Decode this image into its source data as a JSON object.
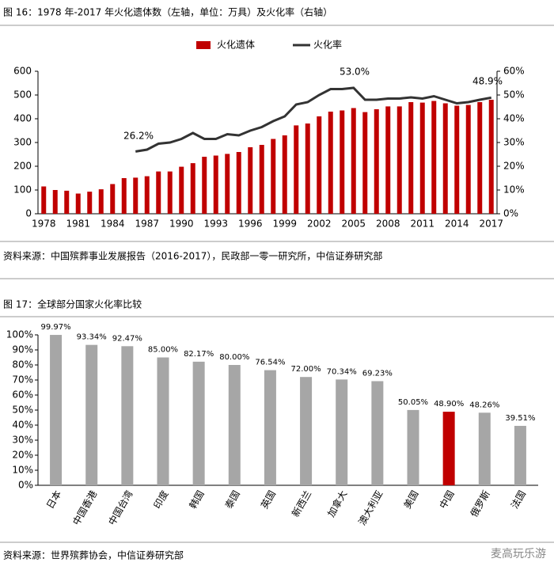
{
  "watermark": "麦高玩乐游",
  "chart_data": [
    {
      "type": "bar_line",
      "title": "图 16：1978 年-2017 年火化遗体数（左轴，单位：万具）及火化率（右轴）",
      "source": "资料来源：中国殡葬事业发展报告（2016-2017），民政部一零一研究所，中信证券研究部",
      "categories": [
        "1978",
        null,
        null,
        "1981",
        null,
        null,
        "1984",
        null,
        null,
        "1987",
        null,
        null,
        "1990",
        null,
        null,
        "1993",
        null,
        null,
        "1996",
        null,
        null,
        "1999",
        null,
        null,
        "2002",
        null,
        null,
        "2005",
        null,
        null,
        "2008",
        null,
        null,
        "2011",
        null,
        null,
        "2014",
        null,
        null,
        "2017"
      ],
      "series": [
        {
          "name": "火化遗体",
          "color": "#c00000",
          "values": [
            115,
            100,
            97,
            85,
            93,
            103,
            125,
            150,
            152,
            158,
            178,
            178,
            198,
            213,
            240,
            245,
            252,
            260,
            280,
            290,
            315,
            330,
            372,
            380,
            410,
            430,
            435,
            445,
            428,
            440,
            452,
            452,
            470,
            468,
            475,
            465,
            455,
            458,
            470,
            480
          ]
        },
        {
          "name": "火化率",
          "color": "#333333",
          "axis": "y2",
          "values": [
            null,
            null,
            null,
            null,
            null,
            null,
            null,
            null,
            26.2,
            27,
            29.5,
            30,
            31.5,
            34,
            31.5,
            31.5,
            33.5,
            33,
            35,
            36.5,
            39,
            41,
            46,
            47,
            50,
            52.5,
            52.5,
            53.0,
            48,
            48,
            48.5,
            48.5,
            49,
            48.5,
            49.5,
            48,
            46.5,
            47,
            48,
            48.9
          ]
        }
      ],
      "annotations": [
        "26.2%",
        "53.0%",
        "48.9%"
      ],
      "ylim": [
        0,
        600
      ],
      "yticks": [
        0,
        100,
        200,
        300,
        400,
        500,
        600
      ],
      "y2lim": [
        0,
        60
      ],
      "y2ticks": [
        {
          "value": 0,
          "label": "0%"
        },
        {
          "value": 10,
          "label": "10%"
        },
        {
          "value": 20,
          "label": "20%"
        },
        {
          "value": 30,
          "label": "30%"
        },
        {
          "value": 40,
          "label": "40%"
        },
        {
          "value": 50,
          "label": "50%"
        },
        {
          "value": 60,
          "label": "60%"
        }
      ],
      "legend": "top"
    },
    {
      "type": "bar",
      "title": "图 17：全球部分国家火化率比较",
      "source": "资料来源：世界殡葬协会，中信证券研究部",
      "categories": [
        "日本",
        "中国香港",
        "中国台湾",
        "印度",
        "韩国",
        "泰国",
        "英国",
        "新西兰",
        "加拿大",
        "澳大利亚",
        "美国",
        "中国",
        "俄罗斯",
        "法国"
      ],
      "values": [
        99.97,
        93.34,
        92.47,
        85.0,
        82.17,
        80.0,
        76.54,
        72.0,
        70.34,
        69.23,
        50.05,
        48.9,
        48.26,
        39.51
      ],
      "value_labels": [
        "99.97%",
        "93.34%",
        "92.47%",
        "85.00%",
        "82.17%",
        "80.00%",
        "76.54%",
        "72.00%",
        "70.34%",
        "69.23%",
        "50.05%",
        "48.90%",
        "48.26%",
        "39.51%"
      ],
      "colors": [
        "#a6a6a6",
        "#a6a6a6",
        "#a6a6a6",
        "#a6a6a6",
        "#a6a6a6",
        "#a6a6a6",
        "#a6a6a6",
        "#a6a6a6",
        "#a6a6a6",
        "#a6a6a6",
        "#a6a6a6",
        "#c00000",
        "#a6a6a6",
        "#a6a6a6"
      ],
      "ylim": [
        0,
        100
      ],
      "yticks": [
        {
          "value": 0,
          "label": "0%"
        },
        {
          "value": 10,
          "label": "10%"
        },
        {
          "value": 20,
          "label": "20%"
        },
        {
          "value": 30,
          "label": "30%"
        },
        {
          "value": 40,
          "label": "40%"
        },
        {
          "value": 50,
          "label": "50%"
        },
        {
          "value": 60,
          "label": "60%"
        },
        {
          "value": 70,
          "label": "70%"
        },
        {
          "value": 80,
          "label": "80%"
        },
        {
          "value": 90,
          "label": "90%"
        },
        {
          "value": 100,
          "label": "100%"
        }
      ]
    }
  ]
}
